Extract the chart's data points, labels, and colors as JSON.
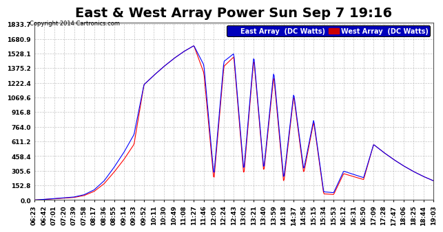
{
  "title": "East & West Array Power Sun Sep 7 19:16",
  "copyright": "Copyright 2014 Cartronics.com",
  "legend_east": "East Array  (DC Watts)",
  "legend_west": "West Array  (DC Watts)",
  "east_color": "#0000ff",
  "west_color": "#ff0000",
  "east_legend_bg": "#0000cc",
  "west_legend_bg": "#cc0000",
  "background_color": "#ffffff",
  "plot_bg": "#ffffff",
  "grid_color": "#aaaaaa",
  "ymax": 1833.7,
  "ymin": 0.0,
  "yticks": [
    0.0,
    152.8,
    305.6,
    458.4,
    611.2,
    764.0,
    916.8,
    1069.6,
    1222.4,
    1375.2,
    1528.1,
    1680.9,
    1833.7
  ],
  "title_fontsize": 14,
  "label_fontsize": 7,
  "tick_fontsize": 6.5
}
